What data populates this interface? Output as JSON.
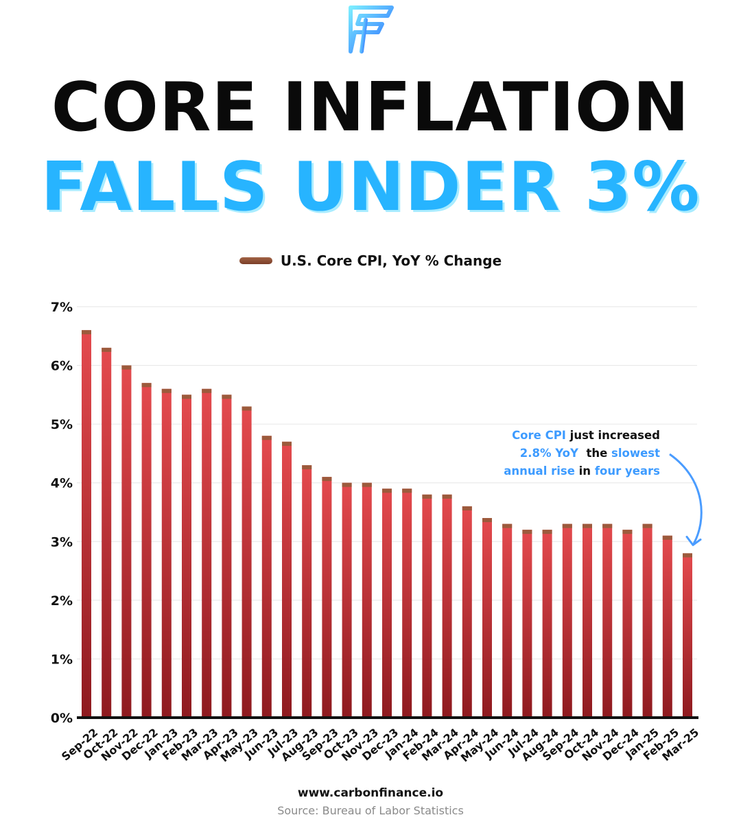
{
  "header": {
    "title_line1": "CORE INFLATION",
    "title_line2": "FALLS UNDER 3%"
  },
  "colors": {
    "accent": "#27b4ff",
    "bar_top": "#e44a4e",
    "bar_bottom": "#8e1a1f",
    "bar_cap": "#9c5a3c",
    "highlight_text": "#3d9bff"
  },
  "annotation": {
    "l1a": "Core CPI",
    "l1b": " just increased",
    "l2a": "2.8% YoY",
    "l2b": "  the ",
    "l2c": "slowest",
    "l3a": "annual rise",
    "l3b": " in ",
    "l3c": "four years"
  },
  "footer": {
    "website": "www.carbonfinance.io",
    "source": "Source: Bureau of Labor Statistics"
  },
  "chart_data": {
    "type": "bar",
    "title": "",
    "xlabel": "",
    "ylabel": "",
    "ylim": [
      0,
      7
    ],
    "yticks": [
      0,
      1,
      2,
      3,
      4,
      5,
      6,
      7
    ],
    "ytick_labels": [
      "0%",
      "1%",
      "2%",
      "3%",
      "4%",
      "5%",
      "6%",
      "7%"
    ],
    "grid": true,
    "legend_position": "top-center",
    "categories": [
      "Sep-22",
      "Oct-22",
      "Nov-22",
      "Dec-22",
      "Jan-23",
      "Feb-23",
      "Mar-23",
      "Apr-23",
      "May-23",
      "Jun-23",
      "Jul-23",
      "Aug-23",
      "Sep-23",
      "Oct-23",
      "Nov-23",
      "Dec-23",
      "Jan-24",
      "Feb-24",
      "Mar-24",
      "Apr-24",
      "May-24",
      "Jun-24",
      "Jul-24",
      "Aug-24",
      "Sep-24",
      "Oct-24",
      "Nov-24",
      "Dec-24",
      "Jan-25",
      "Feb-25",
      "Mar-25"
    ],
    "series": [
      {
        "name": "U.S. Core CPI, YoY % Change",
        "values": [
          6.6,
          6.3,
          6.0,
          5.7,
          5.6,
          5.5,
          5.6,
          5.5,
          5.3,
          4.8,
          4.7,
          4.3,
          4.1,
          4.0,
          4.0,
          3.9,
          3.9,
          3.8,
          3.8,
          3.6,
          3.4,
          3.3,
          3.2,
          3.2,
          3.3,
          3.3,
          3.3,
          3.2,
          3.3,
          3.1,
          2.8
        ]
      }
    ]
  }
}
